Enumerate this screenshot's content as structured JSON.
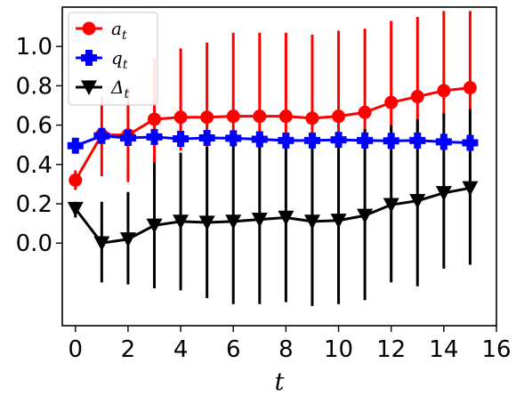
{
  "chart_data": {
    "type": "line",
    "xlabel": "t",
    "ylabel": "",
    "xlim": [
      -0.5,
      16
    ],
    "ylim": [
      -0.42,
      1.2
    ],
    "xticks": [
      0,
      2,
      4,
      6,
      8,
      10,
      12,
      14,
      16
    ],
    "yticks": [
      0.0,
      0.2,
      0.4,
      0.6,
      0.8,
      1.0
    ],
    "x": [
      0,
      1,
      2,
      3,
      4,
      5,
      6,
      7,
      8,
      9,
      10,
      11,
      12,
      13,
      14,
      15
    ],
    "legend_position": "top-left",
    "series": [
      {
        "name": "a_t",
        "legend_base": "a",
        "legend_sub": "t",
        "color": "#ff0000",
        "marker": "circle",
        "values": [
          0.32,
          0.55,
          0.55,
          0.63,
          0.64,
          0.64,
          0.645,
          0.645,
          0.645,
          0.635,
          0.645,
          0.665,
          0.715,
          0.745,
          0.775,
          0.79
        ],
        "err_lower": [
          0.27,
          0.34,
          0.31,
          0.33,
          0.47,
          0.49,
          0.49,
          0.48,
          0.47,
          0.48,
          0.48,
          0.48,
          0.48,
          0.5,
          0.64,
          0.67
        ],
        "err_upper": [
          0.37,
          0.75,
          0.79,
          0.94,
          0.99,
          1.02,
          1.07,
          1.07,
          1.07,
          1.06,
          1.08,
          1.09,
          1.13,
          1.15,
          1.18,
          1.18
        ]
      },
      {
        "name": "q_t",
        "legend_base": "q",
        "legend_sub": "t",
        "color": "#0000ff",
        "marker": "plus",
        "values": [
          0.495,
          0.545,
          0.535,
          0.54,
          0.53,
          0.535,
          0.533,
          0.528,
          0.522,
          0.522,
          0.525,
          0.522,
          0.52,
          0.522,
          0.515,
          0.51
        ],
        "err_lower": [
          0.495,
          0.545,
          0.535,
          0.54,
          0.53,
          0.535,
          0.533,
          0.528,
          0.522,
          0.522,
          0.525,
          0.522,
          0.52,
          0.522,
          0.515,
          0.51
        ],
        "err_upper": [
          0.495,
          0.545,
          0.535,
          0.54,
          0.53,
          0.535,
          0.533,
          0.528,
          0.522,
          0.522,
          0.525,
          0.522,
          0.52,
          0.522,
          0.515,
          0.51
        ]
      },
      {
        "name": "Δ_t",
        "legend_base": "Δ",
        "legend_sub": "t",
        "color": "#000000",
        "marker": "triangle-down",
        "values": [
          0.175,
          0.0,
          0.02,
          0.09,
          0.11,
          0.105,
          0.11,
          0.12,
          0.13,
          0.11,
          0.115,
          0.14,
          0.195,
          0.215,
          0.255,
          0.28
        ],
        "err_lower": [
          0.13,
          -0.2,
          -0.21,
          -0.23,
          -0.24,
          -0.28,
          -0.31,
          -0.31,
          -0.3,
          -0.32,
          -0.31,
          -0.29,
          -0.2,
          -0.22,
          -0.13,
          -0.11
        ],
        "err_upper": [
          0.21,
          0.21,
          0.26,
          0.41,
          0.46,
          0.49,
          0.53,
          0.56,
          0.56,
          0.55,
          0.56,
          0.58,
          0.6,
          0.63,
          0.66,
          0.68
        ]
      }
    ]
  }
}
